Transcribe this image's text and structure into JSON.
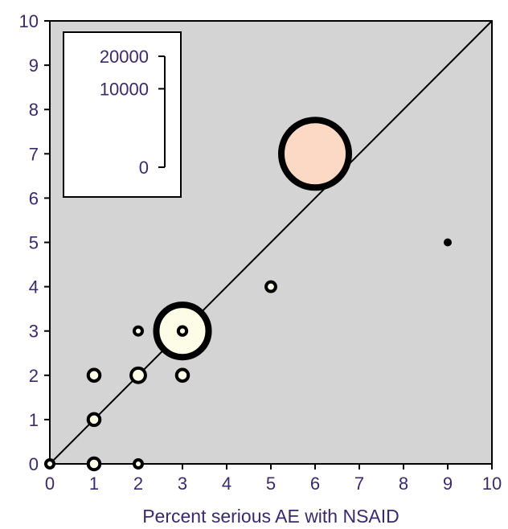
{
  "chart_data": {
    "type": "scatter",
    "title": "",
    "xlabel": "Percent serious AE with NSAID",
    "ylabel": "",
    "xlim": [
      0,
      10
    ],
    "ylim": [
      0,
      10
    ],
    "x_ticks": [
      "0",
      "1",
      "2",
      "3",
      "4",
      "5",
      "6",
      "7",
      "8",
      "9",
      "10"
    ],
    "y_ticks": [
      "0",
      "1",
      "2",
      "3",
      "4",
      "5",
      "6",
      "7",
      "8",
      "9",
      "10"
    ],
    "grid": false,
    "background": "#d4d4d4",
    "reference_line": {
      "from": [
        0,
        0
      ],
      "to": [
        10,
        10
      ]
    },
    "legend": {
      "placement": "top-left",
      "labels": [
        "20000",
        "10000",
        "0"
      ],
      "values": [
        20000,
        10000,
        0
      ]
    },
    "points": [
      {
        "x": 6,
        "y": 7,
        "size": 20000,
        "fill": "#fcd9c4"
      },
      {
        "x": 3,
        "y": 3,
        "size": 12000,
        "fill": "#fdfce6"
      },
      {
        "x": 5,
        "y": 4,
        "size": 400,
        "fill": "#fdfce6"
      },
      {
        "x": 3,
        "y": 3,
        "size": 300,
        "fill": "#fdfce6"
      },
      {
        "x": 1,
        "y": 2,
        "size": 600,
        "fill": "#fdfce6"
      },
      {
        "x": 2,
        "y": 2,
        "size": 900,
        "fill": "#fdfce6"
      },
      {
        "x": 3,
        "y": 2,
        "size": 600,
        "fill": "#fdfce6"
      },
      {
        "x": 1,
        "y": 1,
        "size": 600,
        "fill": "#fdfce6"
      },
      {
        "x": 1,
        "y": 0,
        "size": 600,
        "fill": "#fdfce6"
      },
      {
        "x": 2,
        "y": 0,
        "size": 250,
        "fill": "#fdfce6"
      },
      {
        "x": 0,
        "y": 0,
        "size": 150,
        "fill": "#fdfce6"
      },
      {
        "x": 2,
        "y": 3,
        "size": 100,
        "fill": "#fdfce6"
      },
      {
        "x": 9,
        "y": 5,
        "size": 30,
        "fill": "#000000"
      }
    ]
  }
}
